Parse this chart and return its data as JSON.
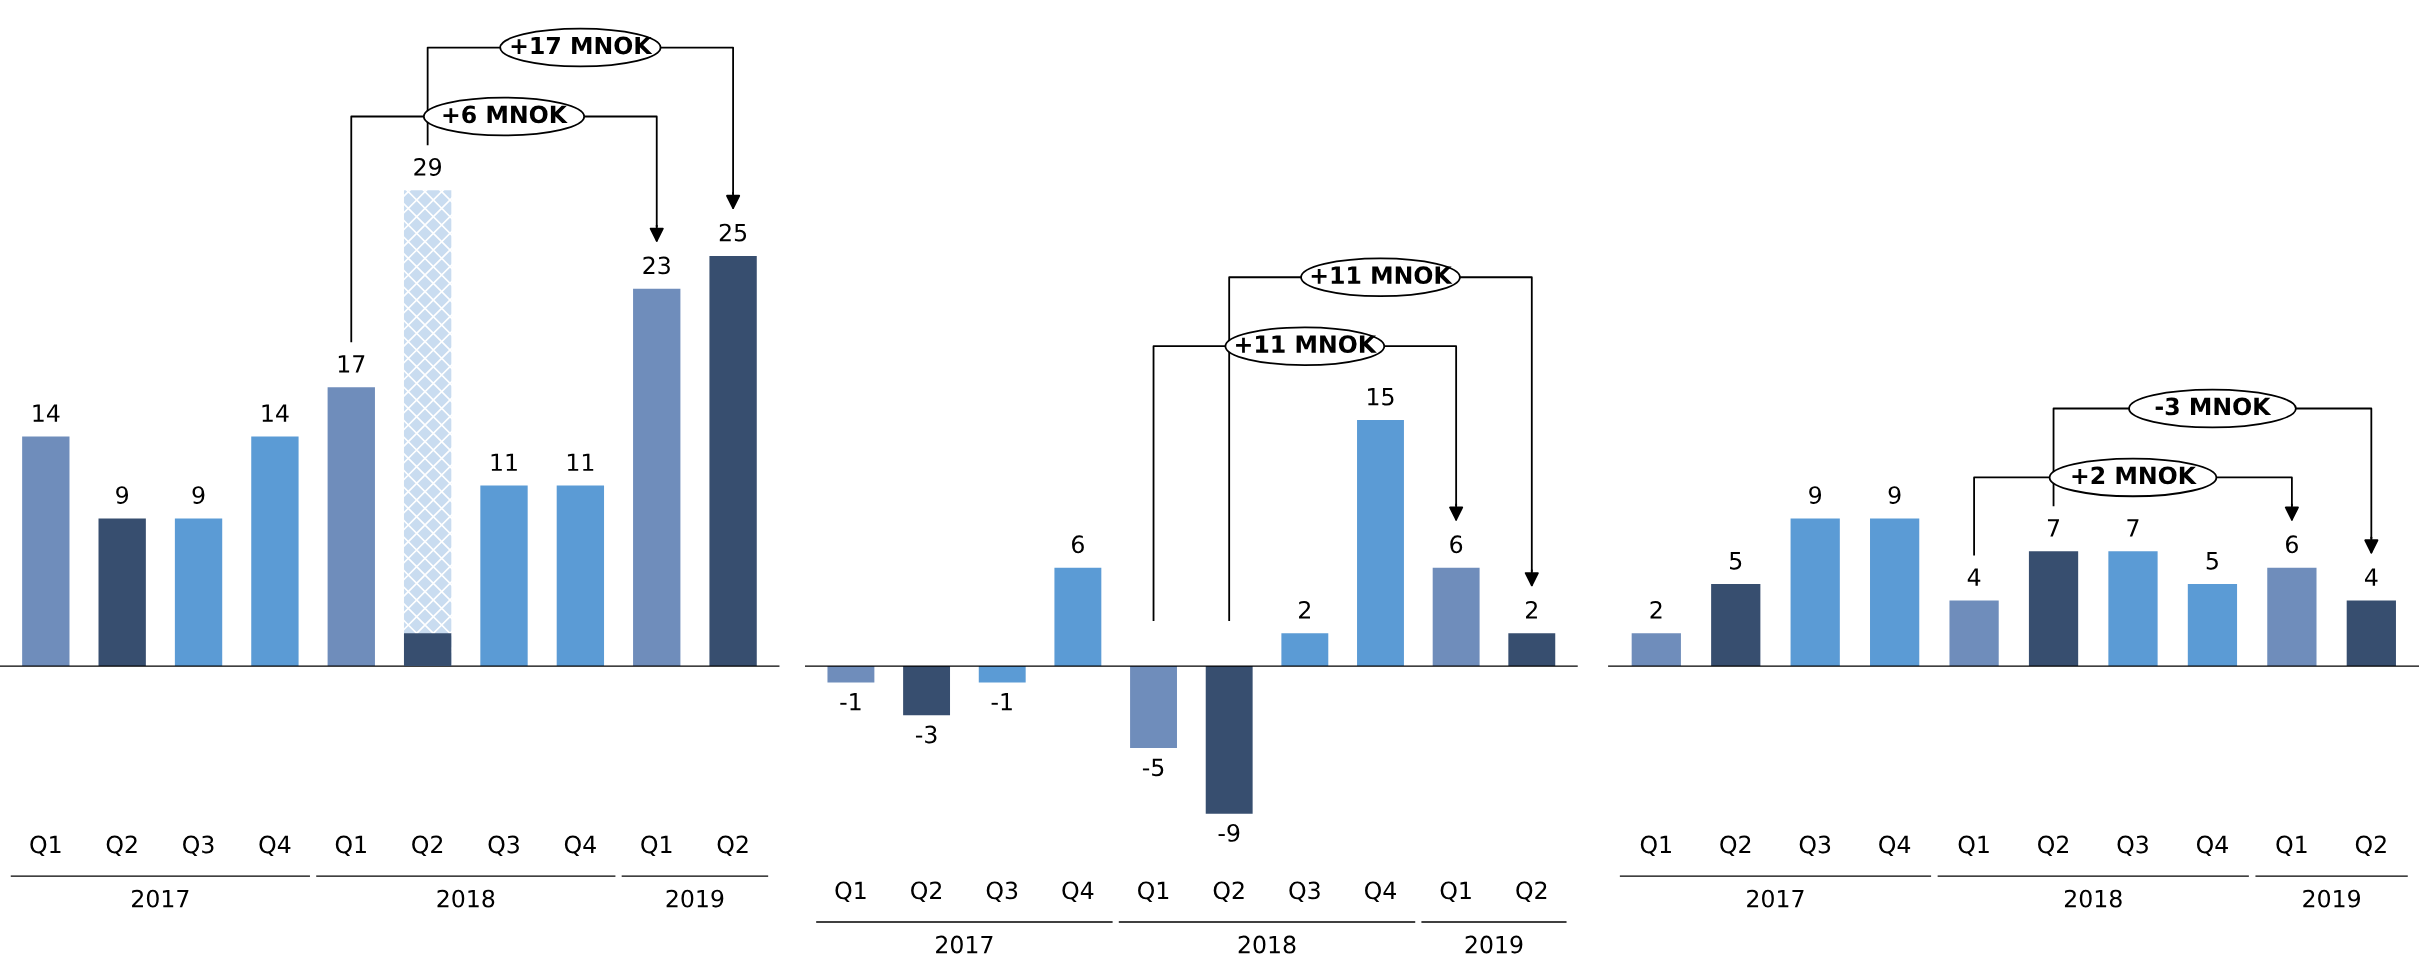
{
  "chart_data": [
    {
      "type": "bar",
      "categories": [
        "Q1",
        "Q2",
        "Q3",
        "Q4",
        "Q1",
        "Q2",
        "Q3",
        "Q4",
        "Q1",
        "Q2"
      ],
      "series": [
        {
          "colors": [
            "#6f8dbb",
            "#374e6f",
            "#5b9bd5",
            "#5b9bd5",
            "#6f8dbb",
            "#c9dcf0",
            "#5b9bd5",
            "#5b9bd5",
            "#6f8dbb",
            "#374e6f"
          ],
          "values": [
            14,
            9,
            9,
            14,
            17,
            29,
            11,
            11,
            23,
            25
          ],
          "value_labels": [
            "14",
            "9",
            "9",
            "14",
            "17",
            "29",
            "11",
            "11",
            "23",
            "25"
          ]
        },
        {
          "color": "#374e6f",
          "values": [
            null,
            null,
            null,
            null,
            null,
            2,
            null,
            null,
            null,
            null
          ],
          "value_labels": [
            null,
            null,
            null,
            null,
            null,
            null,
            null,
            null,
            null,
            null
          ]
        }
      ],
      "annotations": [
        "2017",
        "2018",
        "2019",
        "+17 MNOK",
        "+6 MNOK"
      ]
    },
    {
      "type": "bar",
      "categories": [
        "Q1",
        "Q2",
        "Q3",
        "Q4",
        "Q1",
        "Q2",
        "Q3",
        "Q4",
        "Q1",
        "Q2"
      ],
      "series": [
        {
          "colors": [
            "#6f8dbb",
            "#374e6f",
            "#5b9bd5",
            "#5b9bd5",
            "#6f8dbb",
            "#374e6f",
            "#5b9bd5",
            "#5b9bd5",
            "#6f8dbb",
            "#374e6f"
          ],
          "values": [
            -1,
            -3,
            -1,
            6,
            -5,
            -9,
            2,
            15,
            6,
            2
          ]
        }
      ],
      "data_labels": true,
      "annotations": [
        "2017",
        "2018",
        "2019",
        "+11 MNOK",
        "+11 MNOK"
      ]
    },
    {
      "type": "bar",
      "categories": [
        "Q1",
        "Q2",
        "Q3",
        "Q4",
        "Q1",
        "Q2",
        "Q3",
        "Q4",
        "Q1",
        "Q2"
      ],
      "series": [
        {
          "colors": [
            "#6f8dbb",
            "#374e6f",
            "#5b9bd5",
            "#5b9bd5",
            "#6f8dbb",
            "#374e6f",
            "#5b9bd5",
            "#5b9bd5",
            "#6f8dbb",
            "#374e6f"
          ],
          "values": [
            2,
            5,
            9,
            9,
            4,
            7,
            7,
            5,
            6,
            4
          ]
        }
      ],
      "data_labels": true,
      "annotations": [
        "2017",
        "2018",
        "2019",
        "-3 MNOK",
        "+2 MNOK"
      ]
    }
  ]
}
